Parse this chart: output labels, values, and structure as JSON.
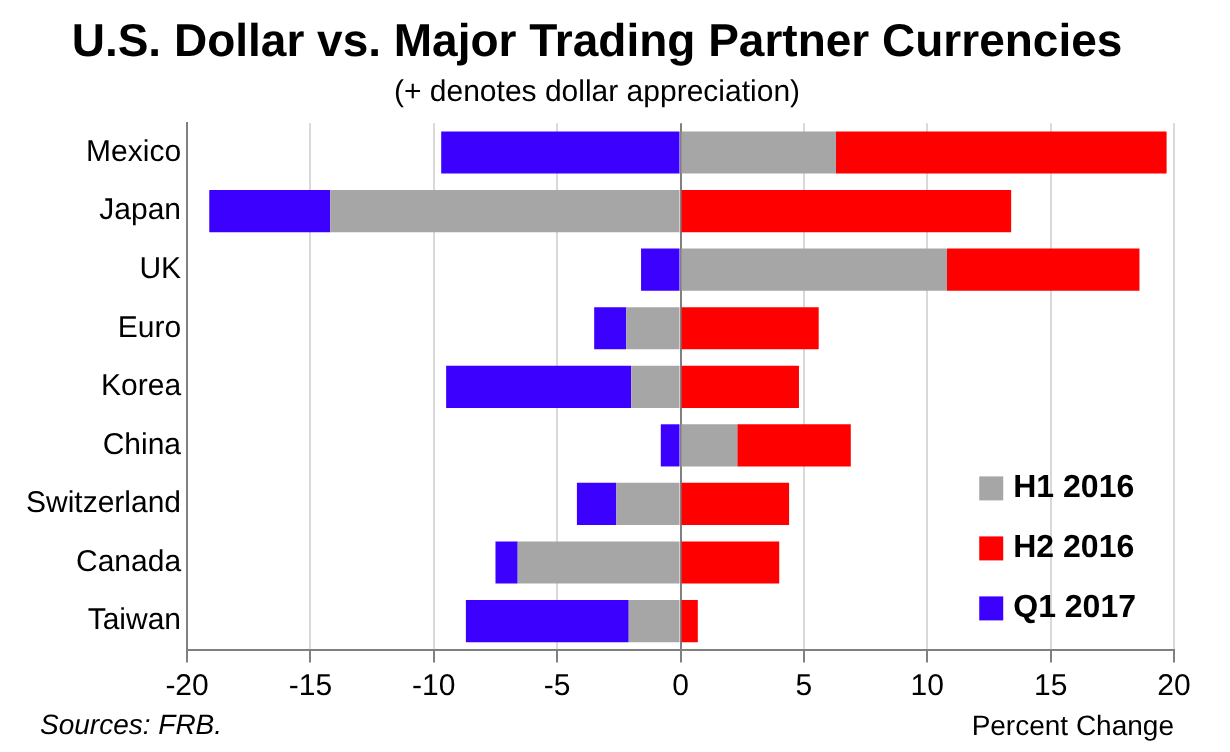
{
  "chart_data": {
    "type": "bar",
    "orientation": "horizontal",
    "stacked": true,
    "title": "U.S. Dollar vs. Major Trading Partner Currencies",
    "subtitle": "(+ denotes dollar appreciation)",
    "xlabel": "Percent Change",
    "annotations": [
      "Sources: FRB."
    ],
    "categories": [
      "Mexico",
      "Japan",
      "UK",
      "Euro",
      "Korea",
      "China",
      "Switzerland",
      "Canada",
      "Taiwan"
    ],
    "series": [
      {
        "name": "H1 2016",
        "color": "#a6a6a6",
        "values": [
          6.3,
          -14.2,
          10.8,
          -2.2,
          -2.0,
          2.3,
          -2.6,
          -6.6,
          -2.1
        ]
      },
      {
        "name": "H2 2016",
        "color": "#ff0000",
        "values": [
          13.4,
          13.4,
          7.8,
          5.6,
          4.8,
          4.6,
          4.4,
          4.0,
          0.7
        ]
      },
      {
        "name": "Q1 2017",
        "color": "#3c00ff",
        "values": [
          -9.7,
          -4.9,
          -1.6,
          -1.3,
          -7.5,
          -0.8,
          -1.6,
          -0.9,
          -6.6
        ]
      }
    ],
    "xlim": [
      -20,
      20
    ],
    "xticks": [
      -20,
      -15,
      -10,
      -5,
      0,
      5,
      10,
      15,
      20
    ],
    "grid": "x",
    "legend": "bottom right"
  }
}
